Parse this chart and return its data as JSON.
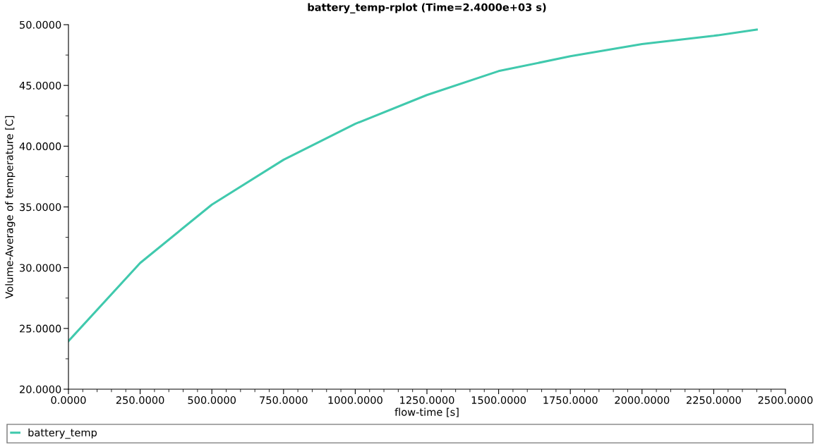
{
  "chart_data": {
    "type": "line",
    "title": "battery_temp-rplot (Time=2.4000e+03 s)",
    "xlabel": "flow-time [s]",
    "ylabel": "Volume-Average of temperature [C]",
    "x": [
      0,
      250,
      500,
      750,
      1000,
      1250,
      1500,
      1750,
      2000,
      2250,
      2400
    ],
    "series": [
      {
        "name": "battery_temp",
        "color": "#40c9ad",
        "values": [
          23.96,
          30.39,
          35.19,
          38.88,
          41.84,
          44.21,
          46.18,
          47.4,
          48.4,
          49.08,
          49.59
        ]
      }
    ],
    "xlim": [
      0,
      2500
    ],
    "ylim": [
      20,
      50
    ],
    "xticks": [
      {
        "value": 0,
        "label": "0.0000"
      },
      {
        "value": 250,
        "label": "250.0000"
      },
      {
        "value": 500,
        "label": "500.0000"
      },
      {
        "value": 750,
        "label": "750.0000"
      },
      {
        "value": 1000,
        "label": "1000.0000"
      },
      {
        "value": 1250,
        "label": "1250.0000"
      },
      {
        "value": 1500,
        "label": "1500.0000"
      },
      {
        "value": 1750,
        "label": "1750.0000"
      },
      {
        "value": 2000,
        "label": "2000.0000"
      },
      {
        "value": 2250,
        "label": "2250.0000"
      },
      {
        "value": 2500,
        "label": "2500.0000"
      }
    ],
    "yticks": [
      {
        "value": 20,
        "label": "20.0000"
      },
      {
        "value": 25,
        "label": "25.0000"
      },
      {
        "value": 30,
        "label": "30.0000"
      },
      {
        "value": 35,
        "label": "35.0000"
      },
      {
        "value": 40,
        "label": "40.0000"
      },
      {
        "value": 45,
        "label": "45.0000"
      },
      {
        "value": 50,
        "label": "50.0000"
      }
    ],
    "grid": false,
    "legend": "bottom",
    "marker": "none",
    "line_style": "solid"
  }
}
